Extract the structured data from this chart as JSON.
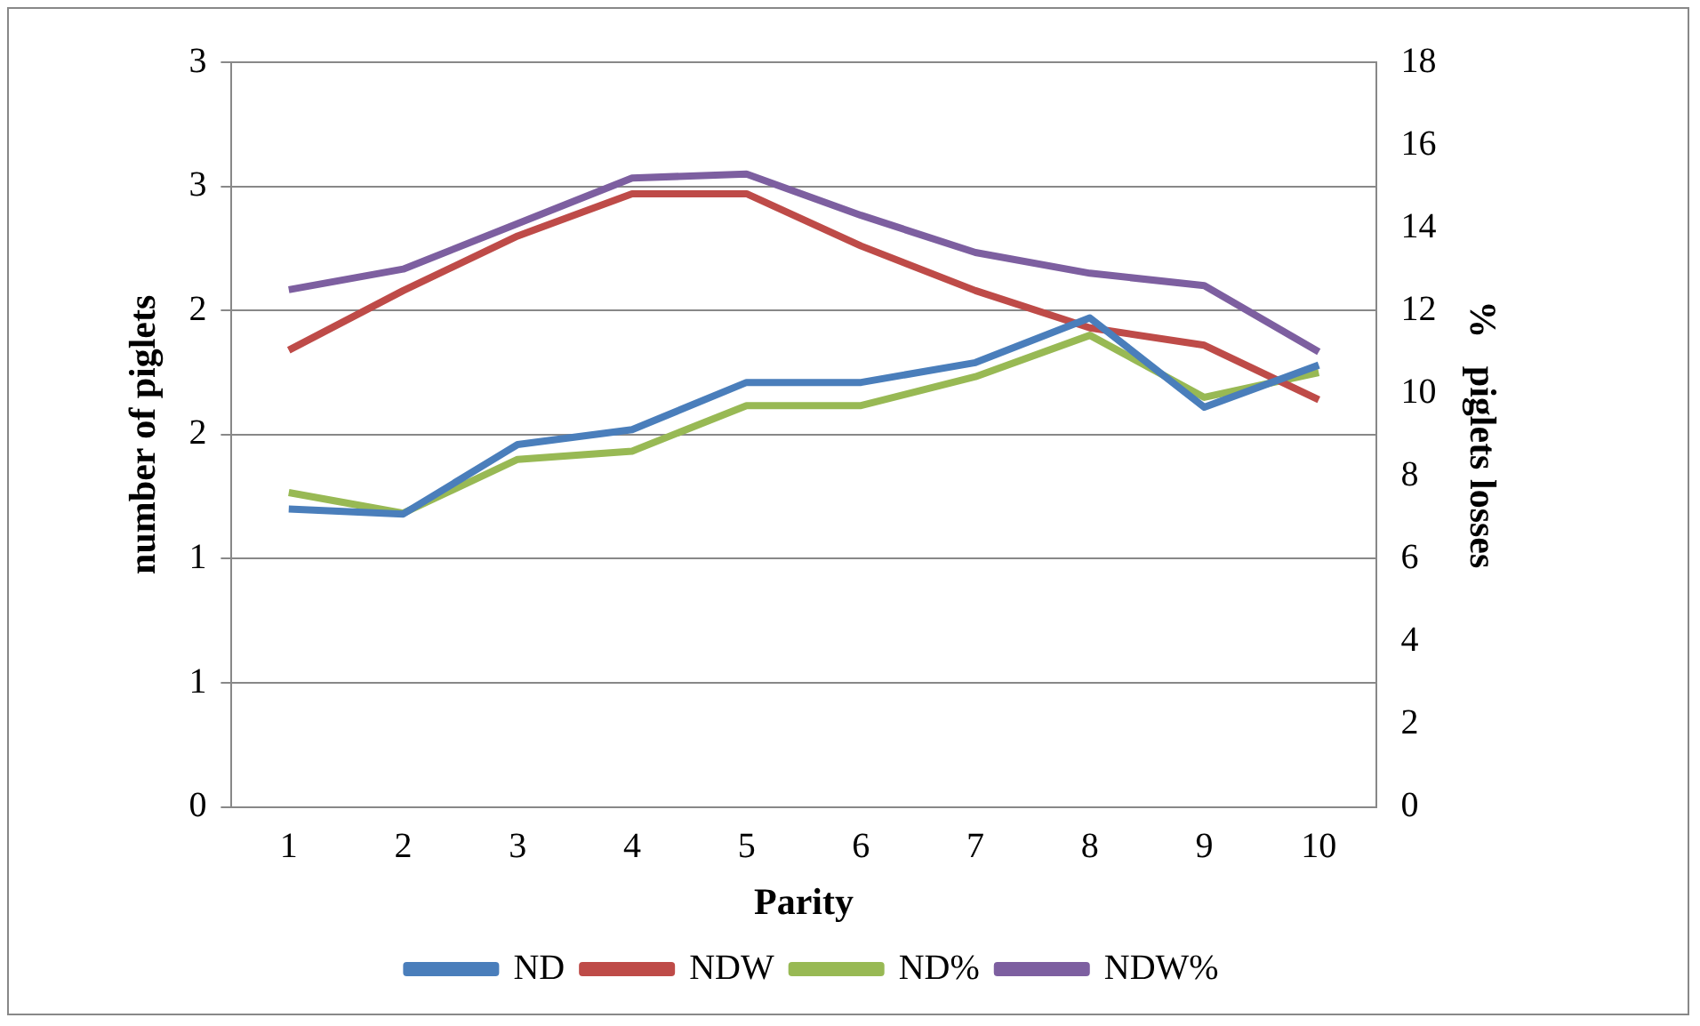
{
  "chart_data": {
    "type": "line",
    "xlabel": "Parity",
    "ylabel": "number of piglets",
    "y2label": "%   piglets losses",
    "categories": [
      "1",
      "2",
      "3",
      "4",
      "5",
      "6",
      "7",
      "8",
      "9",
      "10"
    ],
    "series": [
      {
        "name": "ND",
        "color": "#4a7ebb",
        "values": [
          1.2,
          1.18,
          1.46,
          1.52,
          1.71,
          1.71,
          1.79,
          1.97,
          1.61,
          1.78
        ]
      },
      {
        "name": "NDW",
        "color": "#be4b48",
        "values": [
          1.84,
          2.08,
          2.3,
          2.47,
          2.47,
          2.26,
          2.08,
          1.93,
          1.86,
          1.64
        ]
      },
      {
        "name": "ND%",
        "color": "#98b954",
        "axis": "y2",
        "values": [
          7.6,
          7.1,
          8.4,
          8.6,
          9.7,
          9.7,
          10.4,
          11.4,
          9.9,
          10.5
        ]
      },
      {
        "name": "NDW%",
        "color": "#7d5fa0",
        "axis": "y2",
        "values": [
          12.5,
          13.0,
          14.1,
          15.2,
          15.3,
          14.3,
          13.4,
          12.9,
          12.6,
          11.0
        ]
      }
    ],
    "ylim": [
      0,
      3
    ],
    "yticks": [
      {
        "value": 0,
        "label": "0"
      },
      {
        "value": 0.5,
        "label": "1"
      },
      {
        "value": 1,
        "label": "1"
      },
      {
        "value": 1.5,
        "label": "2"
      },
      {
        "value": 2,
        "label": "2"
      },
      {
        "value": 2.5,
        "label": "3"
      },
      {
        "value": 3,
        "label": "3"
      }
    ],
    "y2lim": [
      0,
      18
    ],
    "y2ticks": [
      0,
      2,
      4,
      6,
      8,
      10,
      12,
      14,
      16,
      18
    ],
    "grid": "y",
    "legend": "bottom",
    "marker": "none",
    "line_style": "solid"
  }
}
